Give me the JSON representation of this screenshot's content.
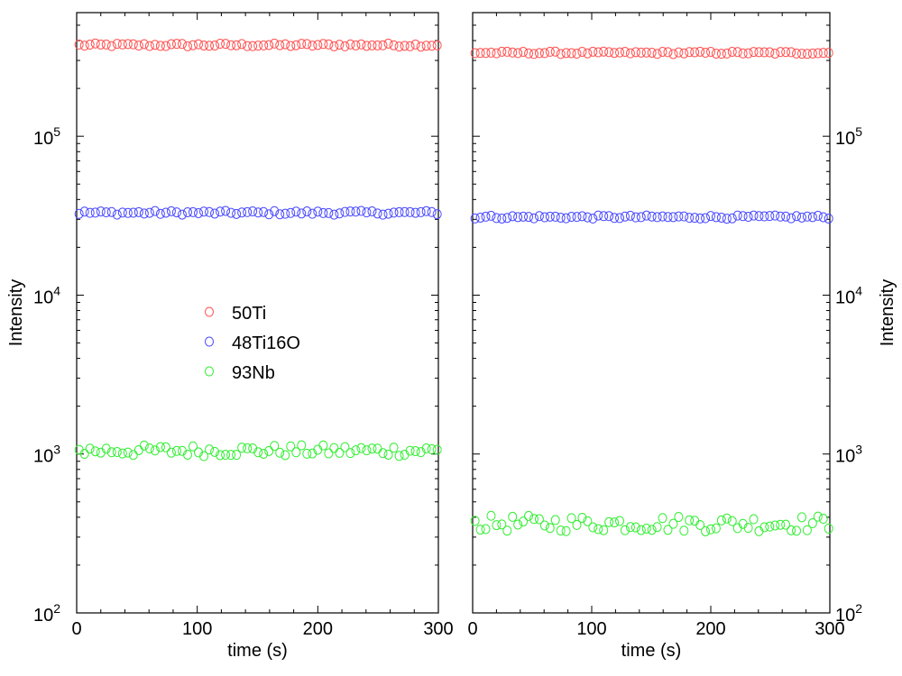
{
  "chart_data": [
    {
      "type": "scatter",
      "panel": "left",
      "xlabel": "time (s)",
      "ylabel": "Intensity",
      "xlim": [
        0,
        300
      ],
      "ylim": [
        100,
        600000
      ],
      "yscale": "log",
      "x_ticks": [
        "0",
        "100",
        "200",
        "300"
      ],
      "y_ticks": [
        {
          "value": 100,
          "base": "10",
          "exp": "2"
        },
        {
          "value": 1000,
          "base": "10",
          "exp": "3"
        },
        {
          "value": 10000,
          "base": "10",
          "exp": "4"
        },
        {
          "value": 100000,
          "base": "10",
          "exp": "5"
        }
      ],
      "y_axis_side": "left",
      "grid": false,
      "legend": {
        "placement": "center-left",
        "entries": [
          "50Ti",
          "48Ti16O",
          "93Nb"
        ]
      },
      "series": [
        {
          "name": "50Ti",
          "color": "#ff5050",
          "level": 375000,
          "jitter": 0.01
        },
        {
          "name": "48Ti16O",
          "color": "#4a4aff",
          "level": 33000,
          "jitter": 0.012
        },
        {
          "name": "93Nb",
          "color": "#33ee33",
          "level": 1050,
          "jitter": 0.035
        }
      ],
      "x_start": 2,
      "x_step": 4.5,
      "n_points": 67
    },
    {
      "type": "scatter",
      "panel": "right",
      "xlabel": "time (s)",
      "ylabel": "Intensity",
      "xlim": [
        0,
        300
      ],
      "ylim": [
        100,
        600000
      ],
      "yscale": "log",
      "x_ticks": [
        "0",
        "100",
        "200",
        "300"
      ],
      "y_ticks": [
        {
          "value": 100,
          "base": "10",
          "exp": "2"
        },
        {
          "value": 1000,
          "base": "10",
          "exp": "3"
        },
        {
          "value": 10000,
          "base": "10",
          "exp": "4"
        },
        {
          "value": 100000,
          "base": "10",
          "exp": "5"
        }
      ],
      "y_axis_side": "right",
      "grid": false,
      "series": [
        {
          "name": "50Ti",
          "color": "#ff5050",
          "level": 335000,
          "jitter": 0.008
        },
        {
          "name": "48Ti16O",
          "color": "#4a4aff",
          "level": 31000,
          "jitter": 0.01
        },
        {
          "name": "93Nb",
          "color": "#33ee33",
          "level": 365,
          "jitter": 0.05
        }
      ],
      "x_start": 2,
      "x_step": 4.5,
      "n_points": 67
    }
  ]
}
